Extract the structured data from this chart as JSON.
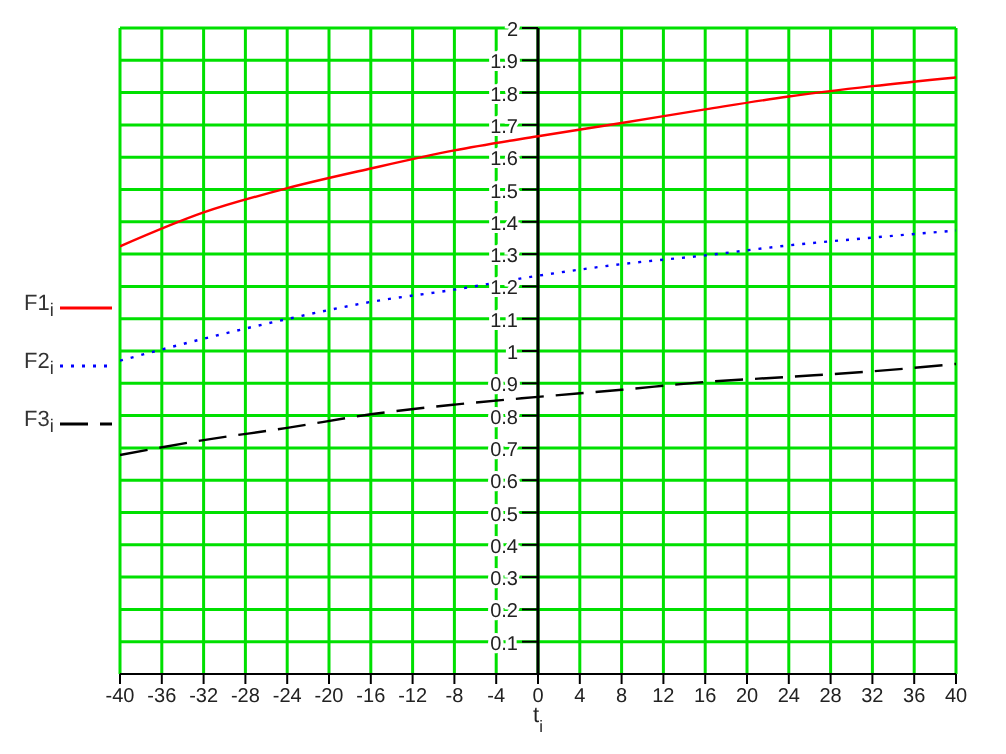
{
  "chart_data": {
    "type": "line",
    "xlabel": "t$_{i}$",
    "x": [
      -40,
      -32,
      -24,
      -16,
      -8,
      0,
      8,
      16,
      24,
      32,
      40
    ],
    "series": [
      {
        "name": "F1$_{i}$",
        "color": "#ff0000",
        "line_style": "solid",
        "values": [
          1.324,
          1.429,
          1.504,
          1.565,
          1.621,
          1.665,
          1.706,
          1.748,
          1.788,
          1.82,
          1.847
        ]
      },
      {
        "name": "F2$_{i}$",
        "color": "#0000ff",
        "line_style": "dotted",
        "values": [
          0.97,
          1.038,
          1.099,
          1.152,
          1.19,
          1.233,
          1.269,
          1.296,
          1.327,
          1.351,
          1.373
        ]
      },
      {
        "name": "F3$_{i}$",
        "color": "#000000",
        "line_style": "dashed",
        "values": [
          0.678,
          0.724,
          0.762,
          0.804,
          0.834,
          0.858,
          0.88,
          0.904,
          0.92,
          0.937,
          0.96
        ]
      }
    ],
    "xlim": [
      -40,
      40
    ],
    "xticks": [
      -40,
      -36,
      -32,
      -28,
      -24,
      -20,
      -16,
      -12,
      -8,
      -4,
      0,
      4,
      8,
      12,
      16,
      20,
      24,
      28,
      32,
      36,
      40
    ],
    "ylim": [
      0,
      2
    ],
    "yticks": [
      0.1,
      0.2,
      0.3,
      0.4,
      0.5,
      0.6,
      0.7,
      0.8,
      0.9,
      1,
      1.1,
      1.2,
      1.3,
      1.4,
      1.5,
      1.6,
      1.7,
      1.8,
      1.9,
      2
    ],
    "grid": true,
    "legend": "left",
    "marker": "none"
  }
}
